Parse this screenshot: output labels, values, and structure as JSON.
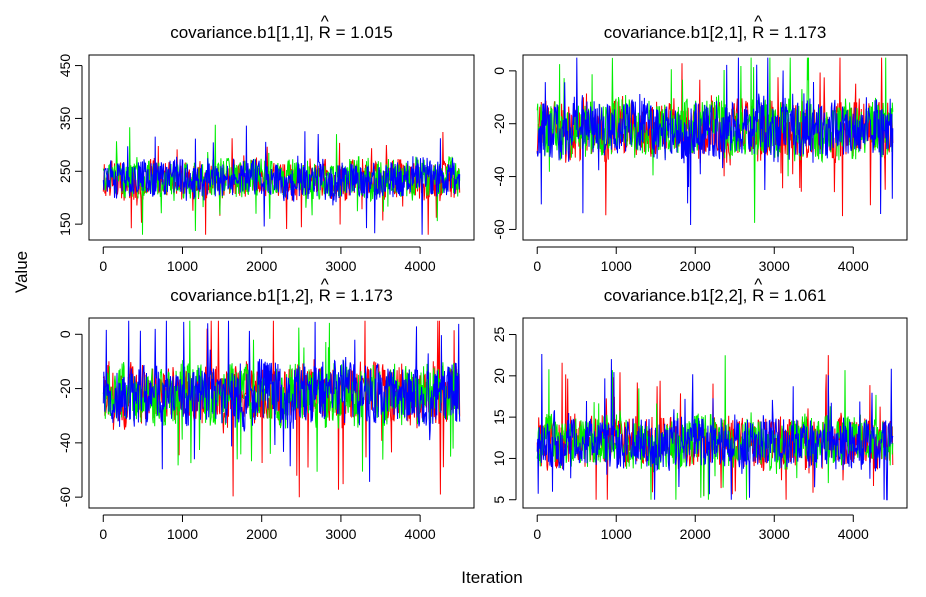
{
  "figure": {
    "xlabel": "Iteration",
    "ylabel": "Value"
  },
  "series_colors": {
    "chain1": "#ff0000",
    "chain2": "#00ee00",
    "chain3": "#0000ff"
  },
  "chart_data": [
    {
      "type": "line",
      "title": "covariance.b1[1,1], R̂ = 1.015",
      "title_param": "covariance.b1[1,1], ",
      "title_stat": "R",
      "title_hat": "^",
      "title_value": " = 1.015",
      "x_range": [
        0,
        4500
      ],
      "xlim": [
        -180,
        4680
      ],
      "xticks": [
        0,
        1000,
        2000,
        3000,
        4000
      ],
      "xtick_labels": [
        "0",
        "1000",
        "2000",
        "3000",
        "4000"
      ],
      "ylim": [
        120,
        470
      ],
      "yticks": [
        150,
        250,
        350,
        450
      ],
      "ytick_labels": [
        "150",
        "250",
        "350",
        "450"
      ],
      "trace_stats": {
        "center": 235,
        "spread": 26,
        "min": 130,
        "max": 450
      },
      "grid": false,
      "legend": "none"
    },
    {
      "type": "line",
      "title": "covariance.b1[2,1], R̂ = 1.173",
      "title_param": "covariance.b1[2,1], ",
      "title_stat": "R",
      "title_hat": "^",
      "title_value": " = 1.173",
      "x_range": [
        0,
        4500
      ],
      "xlim": [
        -180,
        4680
      ],
      "xticks": [
        0,
        1000,
        2000,
        3000,
        4000
      ],
      "xtick_labels": [
        "0",
        "1000",
        "2000",
        "3000",
        "4000"
      ],
      "ylim": [
        -64,
        6
      ],
      "yticks": [
        -60,
        -40,
        -20,
        0
      ],
      "ytick_labels": [
        "-60",
        "-40",
        "-20",
        "0"
      ],
      "trace_stats": {
        "center": -22,
        "spread": 8,
        "min": -62,
        "max": 5
      },
      "grid": false,
      "legend": "none"
    },
    {
      "type": "line",
      "title": "covariance.b1[1,2], R̂ = 1.173",
      "title_param": "covariance.b1[1,2], ",
      "title_stat": "R",
      "title_hat": "^",
      "title_value": " = 1.173",
      "x_range": [
        0,
        4500
      ],
      "xlim": [
        -180,
        4680
      ],
      "xticks": [
        0,
        1000,
        2000,
        3000,
        4000
      ],
      "xtick_labels": [
        "0",
        "1000",
        "2000",
        "3000",
        "4000"
      ],
      "ylim": [
        -64,
        6
      ],
      "yticks": [
        -60,
        -40,
        -20,
        0
      ],
      "ytick_labels": [
        "-60",
        "-40",
        "-20",
        "0"
      ],
      "trace_stats": {
        "center": -22,
        "spread": 8,
        "min": -62,
        "max": 5
      },
      "grid": false,
      "legend": "none"
    },
    {
      "type": "line",
      "title": "covariance.b1[2,2], R̂ = 1.061",
      "title_param": "covariance.b1[2,2], ",
      "title_stat": "R",
      "title_hat": "^",
      "title_value": " = 1.061",
      "x_range": [
        0,
        4500
      ],
      "xlim": [
        -180,
        4680
      ],
      "xticks": [
        0,
        1000,
        2000,
        3000,
        4000
      ],
      "xtick_labels": [
        "0",
        "1000",
        "2000",
        "3000",
        "4000"
      ],
      "ylim": [
        4,
        27
      ],
      "yticks": [
        5,
        10,
        15,
        20,
        25
      ],
      "ytick_labels": [
        "5",
        "10",
        "15",
        "20",
        "25"
      ],
      "trace_stats": {
        "center": 12,
        "spread": 2.2,
        "min": 5,
        "max": 27
      },
      "grid": false,
      "legend": "none"
    }
  ]
}
